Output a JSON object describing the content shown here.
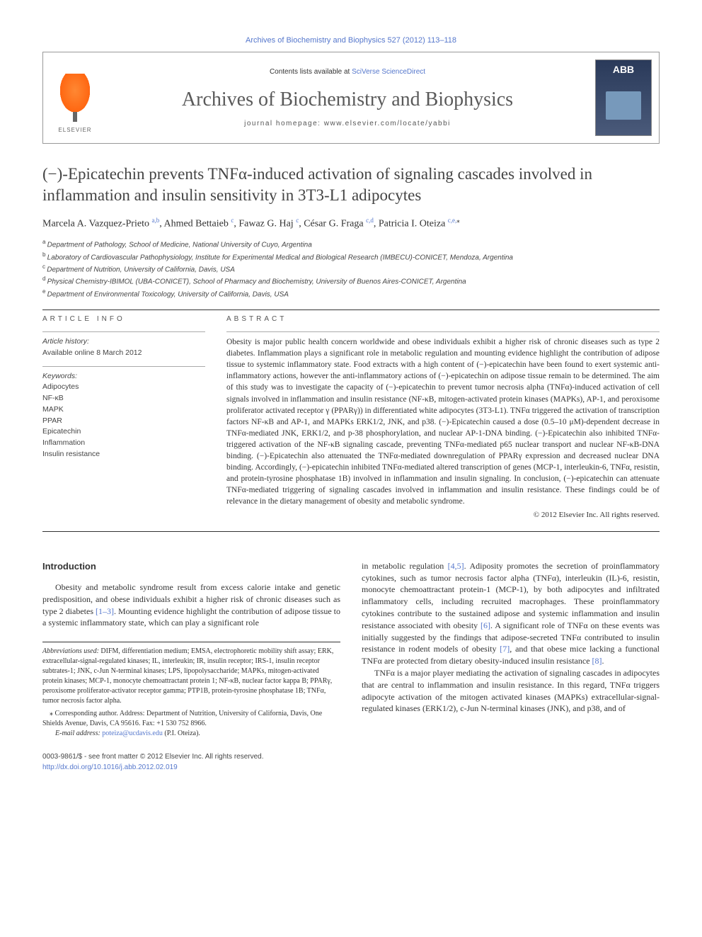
{
  "top_link": "Archives of Biochemistry and Biophysics 527 (2012) 113–118",
  "banner": {
    "contents_prefix": "Contents lists available at ",
    "contents_link": "SciVerse ScienceDirect",
    "journal_name": "Archives of Biochemistry and Biophysics",
    "homepage_prefix": "journal homepage: ",
    "homepage_url": "www.elsevier.com/locate/yabbi",
    "publisher": "ELSEVIER",
    "cover_abbrev": "ABB"
  },
  "title": "(−)-Epicatechin prevents TNFα-induced activation of signaling cascades involved in inflammation and insulin sensitivity in 3T3-L1 adipocytes",
  "authors_html": "Marcela A. Vazquez-Prieto|a,b|, Ahmed Bettaieb|c|, Fawaz G. Haj|c|, César G. Fraga|c,d|, Patricia I. Oteiza|c,e,*|",
  "authors": [
    {
      "name": "Marcela A. Vazquez-Prieto",
      "sup": "a,b"
    },
    {
      "name": "Ahmed Bettaieb",
      "sup": "c"
    },
    {
      "name": "Fawaz G. Haj",
      "sup": "c"
    },
    {
      "name": "César G. Fraga",
      "sup": "c,d"
    },
    {
      "name": "Patricia I. Oteiza",
      "sup": "c,e,",
      "star": "⁎"
    }
  ],
  "affiliations": [
    {
      "sup": "a",
      "text": "Department of Pathology, School of Medicine, National University of Cuyo, Argentina"
    },
    {
      "sup": "b",
      "text": "Laboratory of Cardiovascular Pathophysiology, Institute for Experimental Medical and Biological Research (IMBECU)-CONICET, Mendoza, Argentina"
    },
    {
      "sup": "c",
      "text": "Department of Nutrition, University of California, Davis, USA"
    },
    {
      "sup": "d",
      "text": "Physical Chemistry-IBIMOL (UBA-CONICET), School of Pharmacy and Biochemistry, University of Buenos Aires-CONICET, Argentina"
    },
    {
      "sup": "e",
      "text": "Department of Environmental Toxicology, University of California, Davis, USA"
    }
  ],
  "info": {
    "label": "ARTICLE INFO",
    "history_label": "Article history:",
    "history_value": "Available online 8 March 2012",
    "keywords_label": "Keywords:",
    "keywords": [
      "Adipocytes",
      "NF-κB",
      "MAPK",
      "PPAR",
      "Epicatechin",
      "Inflammation",
      "Insulin resistance"
    ]
  },
  "abstract": {
    "label": "ABSTRACT",
    "text": "Obesity is major public health concern worldwide and obese individuals exhibit a higher risk of chronic diseases such as type 2 diabetes. Inflammation plays a significant role in metabolic regulation and mounting evidence highlight the contribution of adipose tissue to systemic inflammatory state. Food extracts with a high content of (−)-epicatechin have been found to exert systemic anti-inflammatory actions, however the anti-inflammatory actions of (−)-epicatechin on adipose tissue remain to be determined. The aim of this study was to investigate the capacity of (−)-epicatechin to prevent tumor necrosis alpha (TNFα)-induced activation of cell signals involved in inflammation and insulin resistance (NF-κB, mitogen-activated protein kinases (MAPKs), AP-1, and peroxisome proliferator activated receptor γ (PPARγ)) in differentiated white adipocytes (3T3-L1). TNFα triggered the activation of transcription factors NF-κB and AP-1, and MAPKs ERK1/2, JNK, and p38. (−)-Epicatechin caused a dose (0.5–10 μM)-dependent decrease in TNFα-mediated JNK, ERK1/2, and p-38 phosphorylation, and nuclear AP-1-DNA binding. (−)-Epicatechin also inhibited TNFα-triggered activation of the NF-κB signaling cascade, preventing TNFα-mediated p65 nuclear transport and nuclear NF-κB-DNA binding. (−)-Epicatechin also attenuated the TNFα-mediated downregulation of PPARγ expression and decreased nuclear DNA binding. Accordingly, (−)-epicatechin inhibited TNFα-mediated altered transcription of genes (MCP-1, interleukin-6, TNFα, resistin, and protein-tyrosine phosphatase 1B) involved in inflammation and insulin signaling. In conclusion, (−)-epicatechin can attenuate TNFα-mediated triggering of signaling cascades involved in inflammation and insulin resistance. These findings could be of relevance in the dietary management of obesity and metabolic syndrome.",
    "copyright": "© 2012 Elsevier Inc. All rights reserved."
  },
  "intro_heading": "Introduction",
  "intro_left_p1": "Obesity and metabolic syndrome result from excess calorie intake and genetic predisposition, and obese individuals exhibit a higher risk of chronic diseases such as type 2 diabetes [1–3]. Mounting evidence highlight the contribution of adipose tissue to a systemic inflammatory state, which can play a significant role",
  "intro_right_p1": "in metabolic regulation [4,5]. Adiposity promotes the secretion of proinflammatory cytokines, such as tumor necrosis factor alpha (TNFα), interleukin (IL)-6, resistin, monocyte chemoattractant protein-1 (MCP-1), by both adipocytes and infiltrated inflammatory cells, including recruited macrophages. These proinflammatory cytokines contribute to the sustained adipose and systemic inflammation and insulin resistance associated with obesity [6]. A significant role of TNFα on these events was initially suggested by the findings that adipose-secreted TNFα contributed to insulin resistance in rodent models of obesity [7], and that obese mice lacking a functional TNFα are protected from dietary obesity-induced insulin resistance [8].",
  "intro_right_p2": "TNFα is a major player mediating the activation of signaling cascades in adipocytes that are central to inflammation and insulin resistance. In this regard, TNFα triggers adipocyte activation of the mitogen activated kinases (MAPKs) extracellular-signal-regulated kinases (ERK1/2), c-Jun N-terminal kinases (JNK), and p38, and of",
  "footnotes": {
    "abbrev_label": "Abbreviations used:",
    "abbrev_text": " DIFM, differentiation medium; EMSA, electrophoretic mobility shift assay; ERK, extracellular-signal-regulated kinases; IL, interleukin; IR, insulin receptor; IRS-1, insulin receptor subtrates-1; JNK, c-Jun N-terminal kinases; LPS, lipopolysaccharide; MAPKs, mitogen-activated protein kinases; MCP-1, monocyte chemoattractant protein 1; NF-κB, nuclear factor kappa B; PPARγ, peroxisome proliferator-activator receptor gamma; PTP1B, protein-tyrosine phosphatase 1B; TNFα, tumor necrosis factor alpha.",
    "corr_label": "⁎ Corresponding author. Address: ",
    "corr_text": "Department of Nutrition, University of California, Davis, One Shields Avenue, Davis, CA 95616. Fax: +1 530 752 8966.",
    "email_label": "E-mail address: ",
    "email": "poteiza@ucdavis.edu",
    "email_suffix": " (P.I. Oteiza)."
  },
  "bottom": {
    "line1": "0003-9861/$ - see front matter © 2012 Elsevier Inc. All rights reserved.",
    "doi": "http://dx.doi.org/10.1016/j.abb.2012.02.019"
  },
  "colors": {
    "link": "#5577cc",
    "text": "#333333",
    "rule": "#333333",
    "banner_border": "#999999",
    "elsevier_orange": "#ff6611",
    "cover_bg": "#2a3a5a"
  }
}
